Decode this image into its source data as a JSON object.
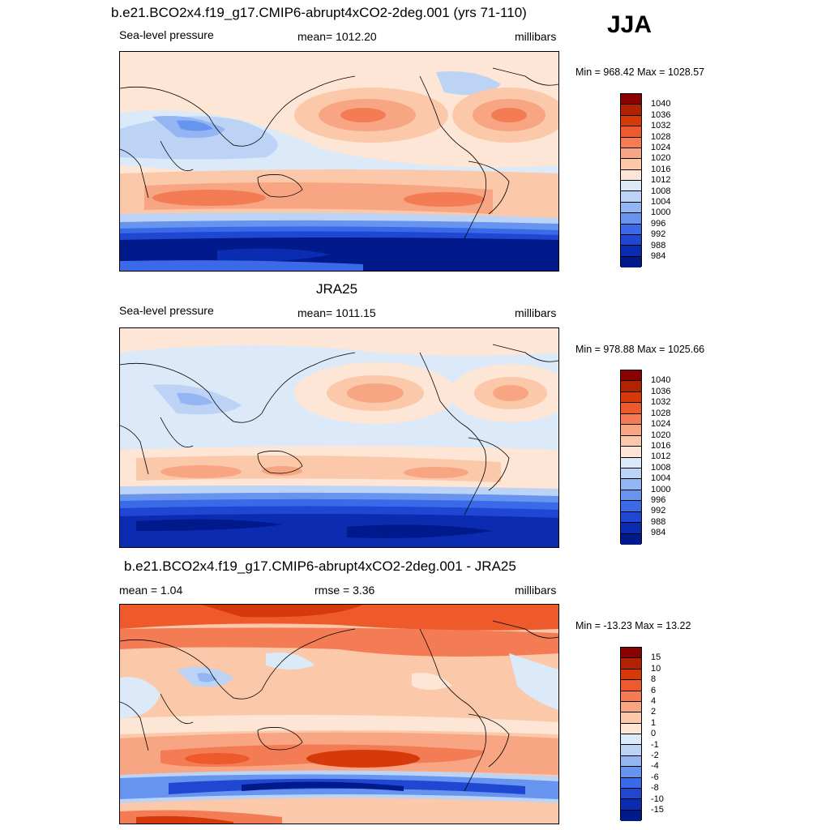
{
  "season": "JJA",
  "panels": [
    {
      "title": "b.e21.BCO2x4.f19_g17.CMIP6-abrupt4xCO2-2deg.001 (yrs 71-110)",
      "left_label": "Sea-level pressure",
      "center_label": "mean= 1012.20",
      "right_label": "millibars",
      "minmax": "Min = 968.42 Max = 1028.57",
      "colorbar": {
        "colors": [
          "#8b0000",
          "#b22200",
          "#d63a0a",
          "#ee5a2c",
          "#f47c55",
          "#f7a582",
          "#fbc8aa",
          "#fde6d5",
          "#dbe9f8",
          "#bcd3f5",
          "#93b5f2",
          "#6694ee",
          "#3b6ae8",
          "#1f47d1",
          "#0b2bb0",
          "#001a8c"
        ],
        "ticks": [
          "1040",
          "1036",
          "1032",
          "1028",
          "1024",
          "1020",
          "1016",
          "1012",
          "1008",
          "1004",
          "1000",
          "996",
          "992",
          "988",
          "984"
        ]
      }
    },
    {
      "title": "JRA25",
      "left_label": "Sea-level pressure",
      "center_label": "mean= 1011.15",
      "right_label": "millibars",
      "minmax": "Min = 978.88 Max = 1025.66",
      "colorbar": {
        "colors": [
          "#8b0000",
          "#b22200",
          "#d63a0a",
          "#ee5a2c",
          "#f47c55",
          "#f7a582",
          "#fbc8aa",
          "#fde6d5",
          "#dbe9f8",
          "#bcd3f5",
          "#93b5f2",
          "#6694ee",
          "#3b6ae8",
          "#1f47d1",
          "#0b2bb0",
          "#001a8c"
        ],
        "ticks": [
          "1040",
          "1036",
          "1032",
          "1028",
          "1024",
          "1020",
          "1016",
          "1012",
          "1008",
          "1004",
          "1000",
          "996",
          "992",
          "988",
          "984"
        ]
      }
    },
    {
      "title": "b.e21.BCO2x4.f19_g17.CMIP6-abrupt4xCO2-2deg.001 - JRA25",
      "left_label": "mean =   1.04",
      "center_label": "rmse =   3.36",
      "right_label": "millibars",
      "minmax": "Min = -13.23 Max =  13.22",
      "colorbar": {
        "colors": [
          "#8b0000",
          "#b22200",
          "#d63a0a",
          "#ee5a2c",
          "#f47c55",
          "#f7a582",
          "#fbc8aa",
          "#fde6d5",
          "#dbe9f8",
          "#bcd3f5",
          "#93b5f2",
          "#6694ee",
          "#3b6ae8",
          "#1f47d1",
          "#0b2bb0",
          "#001a8c"
        ],
        "ticks": [
          "15",
          "10",
          "8",
          "6",
          "4",
          "2",
          "1",
          "0",
          "-1",
          "-2",
          "-4",
          "-6",
          "-8",
          "-10",
          "-15"
        ]
      }
    }
  ]
}
